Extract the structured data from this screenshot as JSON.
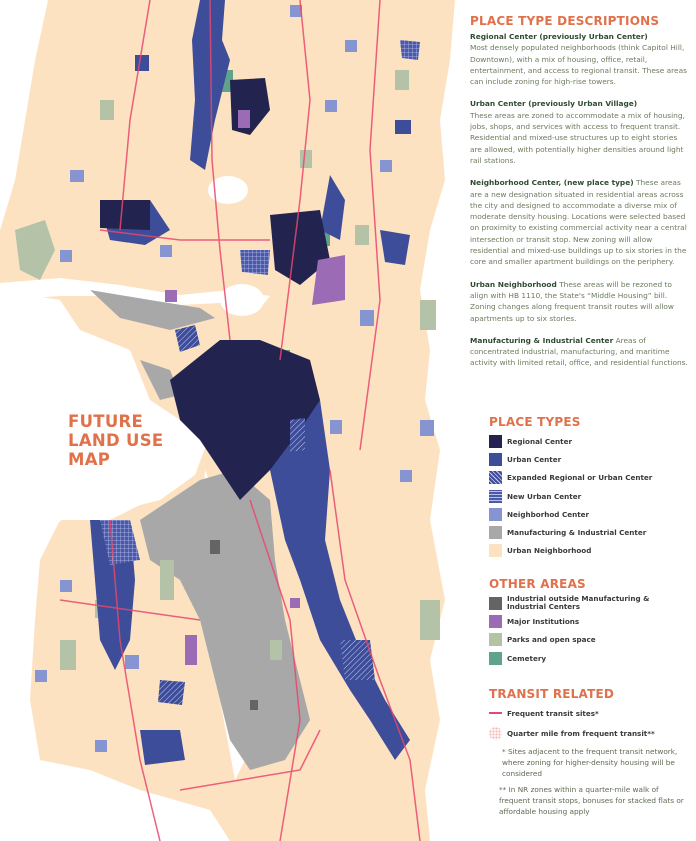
{
  "map": {
    "title_lines": [
      "FUTURE",
      "LAND USE",
      "MAP"
    ]
  },
  "descriptions": {
    "heading": "PLACE TYPE DESCRIPTIONS",
    "items": [
      {
        "title": "Regional Center (previously Urban Center)",
        "text": "Most densely populated neighborhoods (think Capitol Hill, Downtown), with a mix of housing, office, retail, entertainment, and access to regional transit. These areas can include zoning for high-rise towers."
      },
      {
        "title": "Urban Center (previously Urban Village)",
        "text": "These areas are zoned to accommodate a mix of housing, jobs, shops, and services with access to frequent transit. Residential and mixed-use structures up to eight stories are allowed, with potentially higher densities around light rail stations."
      },
      {
        "title": "Neighborhood Center, (new place type)",
        "text": "These areas are a new designation situated in residential areas across the city and designed to accommodate a diverse mix of moderate density housing. Locations were selected based on proximity to existing commercial activity near a central intersection or transit stop. New zoning will allow residential and mixed-use buildings up to six stories in the core and smaller apartment buildings on the periphery."
      },
      {
        "title": "Urban Neighborhood",
        "text": "These areas will be rezoned to align with HB 1110, the State's “Middle Housing” bill. Zoning changes along frequent transit routes will allow apartments up to six stories."
      },
      {
        "title": "Manufacturing & Industrial Center",
        "text": "Areas of concentrated industrial, manufacturing, and maritime activity with limited retail, office, and residential functions."
      }
    ]
  },
  "place_types": {
    "heading": "PLACE TYPES",
    "items": [
      {
        "label": "Regional Center",
        "color": "#23234f",
        "pattern": "solid"
      },
      {
        "label": "Urban Center",
        "color": "#3d4d99",
        "pattern": "solid"
      },
      {
        "label": "Expanded Regional or Urban Center",
        "color": "#3d4d99",
        "pattern": "crosshatch"
      },
      {
        "label": "New Urban Center",
        "color": "#4a5aa8",
        "pattern": "grid"
      },
      {
        "label": "Neighborhod Center",
        "color": "#8794d2",
        "pattern": "solid"
      },
      {
        "label": "Manufacturing & Industrial Center",
        "color": "#a8a8a8",
        "pattern": "solid"
      },
      {
        "label": "Urban Neighborhood",
        "color": "#fde2c2",
        "pattern": "solid"
      }
    ]
  },
  "other_areas": {
    "heading": "OTHER AREAS",
    "items": [
      {
        "label": "Industrial outside Manufacturing & Industrial Centers",
        "color": "#646464"
      },
      {
        "label": "Major Institutions",
        "color": "#9b6bb5"
      },
      {
        "label": "Parks and open space",
        "color": "#b4c2a8"
      },
      {
        "label": "Cemetery",
        "color": "#5fa48a"
      }
    ]
  },
  "transit": {
    "heading": "TRANSIT RELATED",
    "line_color": "#e8476e",
    "items": [
      {
        "label": "Frequent transit sites*",
        "symbol": "line"
      },
      {
        "label": "Quarter mile from frequent transit**",
        "symbol": "dot-grid"
      }
    ],
    "notes": [
      {
        "mark": "*",
        "text": "Sites adjacent to the frequent transit network, where zoning for higher-density housing will be considered"
      },
      {
        "mark": "**",
        "text": "In NR zones within a quarter-mile walk of frequent transit stops, bonuses for stacked flats or affordable housing apply"
      }
    ]
  }
}
